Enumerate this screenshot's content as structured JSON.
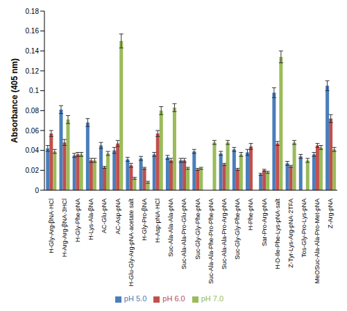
{
  "chart_data": {
    "type": "bar",
    "y_label": "Absorbance (405 nm)",
    "categories": [
      "H-Gly-Arg-βNA·HCl",
      "H-Arg-Arg-βNA·3HCl",
      "H-Gly-Phe-pNA",
      "H-Lys-Ala-βNA",
      "AC-Glu-pNA",
      "AC-Asp-pNA",
      "H-Glu-Gly-Arg-pNA·acetate salt",
      "H-Gly-Pro-βNA",
      "H-Asp-pNA·HCl",
      "Suc-Ala-Ala-Ala-pNA",
      "Suc-Ala-Ala-Pro-Glu-pNA",
      "Suc-Gly-Gly-Phe-pNA",
      "Suc-Ala-Ala-Phe-Pro-Phe-pNA",
      "Suc-Ala-Ala-Pro-Arg-pNA",
      "Suc-Gly-Gly-Phe-pNA",
      "H-Phe-pNA",
      "Sar-Pro-Arg-pNA",
      "H-D-Ile-Phe-Lys-pNA·salt",
      "Z-Tyr-Lys-Arg-pNA·2TFA",
      "Tos-Gly-Pro-Lys-pNA",
      "MeOSuc-Ala-Ala-Pro-Met-pNA",
      "Z-Arg-pNA"
    ],
    "series": [
      {
        "name": "pH 5.0",
        "color": "#4a7ebb",
        "values": [
          0.042,
          0.081,
          0.035,
          0.068,
          0.045,
          0.04,
          0.031,
          0.032,
          0.036,
          0.033,
          0.03,
          0.039,
          null,
          0.037,
          0.041,
          0.038,
          0.016,
          0.098,
          0.027,
          0.034,
          0.036,
          0.105
        ],
        "errors": [
          0.003,
          0.004,
          0.002,
          0.004,
          0.003,
          0.003,
          0.002,
          0.002,
          0.002,
          0.002,
          0.002,
          0.002,
          null,
          0.002,
          0.002,
          0.003,
          0.001,
          0.005,
          0.002,
          0.002,
          0.002,
          0.005
        ]
      },
      {
        "name": "pH 6.0",
        "color": "#c0504d",
        "values": [
          0.057,
          0.048,
          0.036,
          0.03,
          0.023,
          0.047,
          0.025,
          0.022,
          0.057,
          0.03,
          0.03,
          0.021,
          null,
          0.026,
          0.021,
          0.044,
          0.02,
          0.047,
          0.024,
          null,
          0.045,
          0.072
        ],
        "errors": [
          0.003,
          0.003,
          0.002,
          0.002,
          0.001,
          0.003,
          0.002,
          0.001,
          0.003,
          0.002,
          0.002,
          0.001,
          null,
          0.001,
          0.001,
          0.003,
          0.001,
          0.002,
          0.001,
          null,
          0.002,
          0.004
        ]
      },
      {
        "name": "pH 7.0",
        "color": "#9bbb59",
        "values": [
          0.039,
          0.071,
          0.036,
          0.03,
          0.037,
          0.15,
          0.012,
          0.008,
          0.08,
          0.083,
          0.022,
          0.022,
          0.048,
          0.048,
          0.036,
          null,
          0.018,
          0.134,
          0.048,
          0.03,
          0.043,
          0.041
        ],
        "errors": [
          0.002,
          0.004,
          0.002,
          0.002,
          0.002,
          0.007,
          0.001,
          0.001,
          0.004,
          0.004,
          0.001,
          0.001,
          0.002,
          0.002,
          0.002,
          null,
          0.001,
          0.006,
          0.002,
          0.002,
          0.002,
          0.002
        ]
      }
    ],
    "ylim": [
      0,
      0.18
    ],
    "yticks": [
      0,
      0.02,
      0.04,
      0.06,
      0.08,
      0.1,
      0.12,
      0.14,
      0.16,
      0.18
    ],
    "grid": false,
    "legend": "bottom"
  }
}
